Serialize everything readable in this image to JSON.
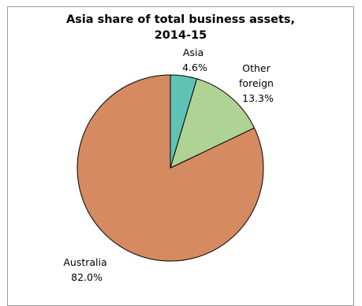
{
  "chart_data": {
    "type": "pie",
    "title_lines": [
      "Asia share of total business assets,",
      "2014-15"
    ],
    "slices": [
      {
        "name": "Asia",
        "label_lines": [
          "Asia",
          "4.6%"
        ],
        "value": 4.6,
        "color": "#5ec3b4"
      },
      {
        "name": "Other foreign",
        "label_lines": [
          "Other",
          "foreign",
          "13.3%"
        ],
        "value": 13.3,
        "color": "#aed394"
      },
      {
        "name": "Australia",
        "label_lines": [
          "Australia",
          "82.0%"
        ],
        "value": 82.0,
        "color": "#d58a62"
      }
    ],
    "start": "12 o'clock",
    "direction": "clockwise",
    "legend": "none"
  }
}
